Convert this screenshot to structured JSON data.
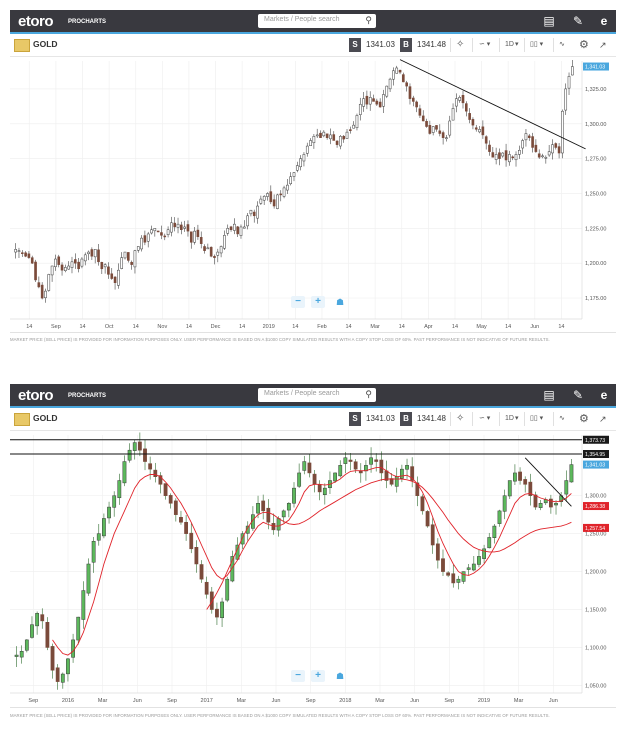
{
  "panels": [
    {
      "logo": "etoro",
      "logo_sub": "PROCHARTS",
      "search_placeholder": "Markets / People search",
      "instrument": "GOLD",
      "sell_label": "S",
      "sell_price": "1341.03",
      "buy_label": "B",
      "buy_price": "1341.48",
      "timeframe": "1D",
      "disclaimer": "MARKET PRICE (SELL PRICE) IS PROVIDED FOR INFORMATION PURPOSES ONLY. USER PERFORMANCE IS BASED ON A $1000 COPY SIMULATED RESULTS WITH A COPY STOP LOSS OF 60%. PAST PERFORMANCE IS NOT INDICATIVE OF FUTURE RESULTS.",
      "chart_data": {
        "type": "candlestick",
        "x_ticks": [
          "14",
          "Sep",
          "14",
          "Oct",
          "14",
          "Nov",
          "14",
          "Dec",
          "14",
          "2019",
          "14",
          "Feb",
          "14",
          "Mar",
          "14",
          "Apr",
          "14",
          "May",
          "14",
          "Jun",
          "14"
        ],
        "y_ticks": [
          "1,325.00",
          "1,300.00",
          "1,275.00",
          "1,250.00",
          "1,225.00",
          "1,200.00",
          "1,175.00"
        ],
        "ylim": [
          1160,
          1345
        ],
        "current_price_label": "1,341.03",
        "trendline": [
          [
            1346,
            "Feb 20"
          ],
          [
            1282,
            "Jun 14"
          ]
        ],
        "close_path": [
          1210,
          1209,
          1207,
          1205,
          1204,
          1200,
          1188,
          1183,
          1175,
          1180,
          1192,
          1198,
          1203,
          1199,
          1195,
          1197,
          1198,
          1201,
          1200,
          1196,
          1203,
          1206,
          1208,
          1205,
          1210,
          1201,
          1196,
          1199,
          1192,
          1189,
          1186,
          1195,
          1204,
          1208,
          1202,
          1199,
          1209,
          1212,
          1218,
          1215,
          1221,
          1224,
          1225,
          1223,
          1220,
          1219,
          1224,
          1229,
          1226,
          1228,
          1224,
          1226,
          1223,
          1215,
          1223,
          1219,
          1214,
          1209,
          1211,
          1205,
          1204,
          1208,
          1212,
          1220,
          1225,
          1224,
          1228,
          1221,
          1226,
          1226,
          1234,
          1238,
          1234,
          1241,
          1246,
          1248,
          1250,
          1244,
          1241,
          1249,
          1249,
          1254,
          1256,
          1262,
          1265,
          1270,
          1275,
          1278,
          1284,
          1288,
          1291,
          1292,
          1290,
          1294,
          1290,
          1292,
          1288,
          1285,
          1291,
          1289,
          1294,
          1295,
          1299,
          1306,
          1314,
          1318,
          1314,
          1319,
          1316,
          1314,
          1312,
          1321,
          1327,
          1332,
          1338,
          1340,
          1337,
          1330,
          1327,
          1318,
          1316,
          1312,
          1306,
          1302,
          1298,
          1293,
          1298,
          1296,
          1293,
          1290,
          1290,
          1302,
          1311,
          1318,
          1319,
          1315,
          1309,
          1303,
          1299,
          1296,
          1296,
          1292,
          1286,
          1280,
          1276,
          1278,
          1275,
          1279,
          1274,
          1278,
          1276,
          1278,
          1281,
          1288,
          1293,
          1290,
          1283,
          1280,
          1276,
          1277,
          1276,
          1280,
          1285,
          1283,
          1279,
          1309,
          1325,
          1334,
          1341
        ]
      }
    },
    {
      "logo": "etoro",
      "logo_sub": "PROCHARTS",
      "search_placeholder": "Markets / People search",
      "instrument": "GOLD",
      "sell_label": "S",
      "sell_price": "1341.03",
      "buy_label": "B",
      "buy_price": "1341.48",
      "timeframe": "1D",
      "disclaimer": "MARKET PRICE (SELL PRICE) IS PROVIDED FOR INFORMATION PURPOSES ONLY. USER PERFORMANCE IS BASED ON A $1000 COPY SIMULATED RESULTS WITH A COPY STOP LOSS OF 60%. PAST PERFORMANCE IS NOT INDICATIVE OF FUTURE RESULTS.",
      "chart_data": {
        "type": "candlestick",
        "x_ticks": [
          "Sep",
          "2016",
          "Mar",
          "Jun",
          "Sep",
          "2017",
          "Mar",
          "Jun",
          "Sep",
          "2018",
          "Mar",
          "Jun",
          "Sep",
          "2019",
          "Mar",
          "Jun"
        ],
        "y_ticks": [
          "1,300.00",
          "1,250.00",
          "1,200.00",
          "1,150.00",
          "1,100.00",
          "1,050.00"
        ],
        "ylim": [
          1040,
          1380
        ],
        "resistance_lines": [
          1373.73,
          1354.95
        ],
        "price_labels": [
          {
            "text": "1,373.73",
            "color": "#1a1a1a"
          },
          {
            "text": "1,354.95",
            "color": "#1a1a1a"
          },
          {
            "text": "1,341.03",
            "color": "#4aa7de"
          },
          {
            "text": "1,286.38",
            "color": "#e0242b"
          },
          {
            "text": "1,257.54",
            "color": "#e0242b"
          }
        ],
        "close_path": [
          1090,
          1095,
          1110,
          1130,
          1145,
          1135,
          1100,
          1070,
          1055,
          1065,
          1085,
          1110,
          1140,
          1175,
          1210,
          1240,
          1250,
          1270,
          1285,
          1300,
          1320,
          1345,
          1360,
          1370,
          1360,
          1345,
          1335,
          1325,
          1315,
          1300,
          1290,
          1275,
          1265,
          1250,
          1230,
          1210,
          1190,
          1170,
          1150,
          1140,
          1160,
          1190,
          1220,
          1235,
          1250,
          1260,
          1275,
          1290,
          1280,
          1265,
          1255,
          1270,
          1280,
          1290,
          1310,
          1330,
          1345,
          1330,
          1315,
          1305,
          1310,
          1320,
          1330,
          1340,
          1350,
          1345,
          1335,
          1330,
          1340,
          1350,
          1345,
          1330,
          1320,
          1315,
          1325,
          1335,
          1340,
          1320,
          1300,
          1280,
          1260,
          1235,
          1215,
          1200,
          1195,
          1185,
          1190,
          1200,
          1205,
          1210,
          1220,
          1230,
          1245,
          1260,
          1280,
          1300,
          1320,
          1330,
          1320,
          1315,
          1300,
          1285,
          1290,
          1295,
          1285,
          1290,
          1300,
          1320,
          1341
        ],
        "ma_fast": [
          null,
          null,
          null,
          null,
          null,
          null,
          null,
          1110,
          1100,
          1092,
          1090,
          1095,
          1105,
          1120,
          1140,
          1160,
          1185,
          1210,
          1230,
          1250,
          1265,
          1280,
          1295,
          1310,
          1320,
          1325,
          1328,
          1328,
          1325,
          1318,
          1310,
          1300,
          1290,
          1278,
          1265,
          1250,
          1235,
          1220,
          1205,
          1195,
          1190,
          1195,
          1205,
          1215,
          1228,
          1240,
          1250,
          1260,
          1265,
          1262,
          1260,
          1260,
          1263,
          1268,
          1278,
          1290,
          1305,
          1313,
          1315,
          1315,
          1314,
          1315,
          1318,
          1322,
          1328,
          1332,
          1333,
          1333,
          1333,
          1335,
          1337,
          1337,
          1333,
          1328,
          1325,
          1326,
          1327,
          1323,
          1316,
          1305,
          1290,
          1272,
          1253,
          1237,
          1223,
          1210,
          1200,
          1196,
          1195,
          1198,
          1203,
          1210,
          1220,
          1232,
          1245,
          1260,
          1275,
          1290,
          1298,
          1302,
          1303,
          1300,
          1297,
          1295,
          1293,
          1292,
          1293,
          1297,
          1303
        ],
        "ma_slow": [
          null,
          null,
          null,
          null,
          null,
          null,
          null,
          null,
          null,
          null,
          null,
          null,
          null,
          null,
          null,
          null,
          null,
          null,
          null,
          null,
          null,
          null,
          null,
          null,
          null,
          null,
          null,
          null,
          null,
          null,
          null,
          null,
          null,
          null,
          null,
          null,
          null,
          1150,
          1160,
          1172,
          1185,
          1200,
          1215,
          1230,
          1245,
          1258,
          1268,
          1275,
          1278,
          1278,
          1275,
          1270,
          1266,
          1263,
          1262,
          1263,
          1266,
          1270,
          1275,
          1280,
          1284,
          1288,
          1292,
          1296,
          1300,
          1304,
          1308,
          1311,
          1314,
          1317,
          1319,
          1321,
          1322,
          1322,
          1322,
          1322,
          1321,
          1319,
          1316,
          1311,
          1304,
          1296,
          1287,
          1278,
          1268,
          1259,
          1250,
          1243,
          1237,
          1232,
          1229,
          1227,
          1226,
          1226,
          1227,
          1230,
          1234,
          1238,
          1243,
          1247,
          1251,
          1254,
          1256,
          1257,
          1258,
          1259,
          1260,
          1262,
          1265
        ]
      }
    }
  ]
}
